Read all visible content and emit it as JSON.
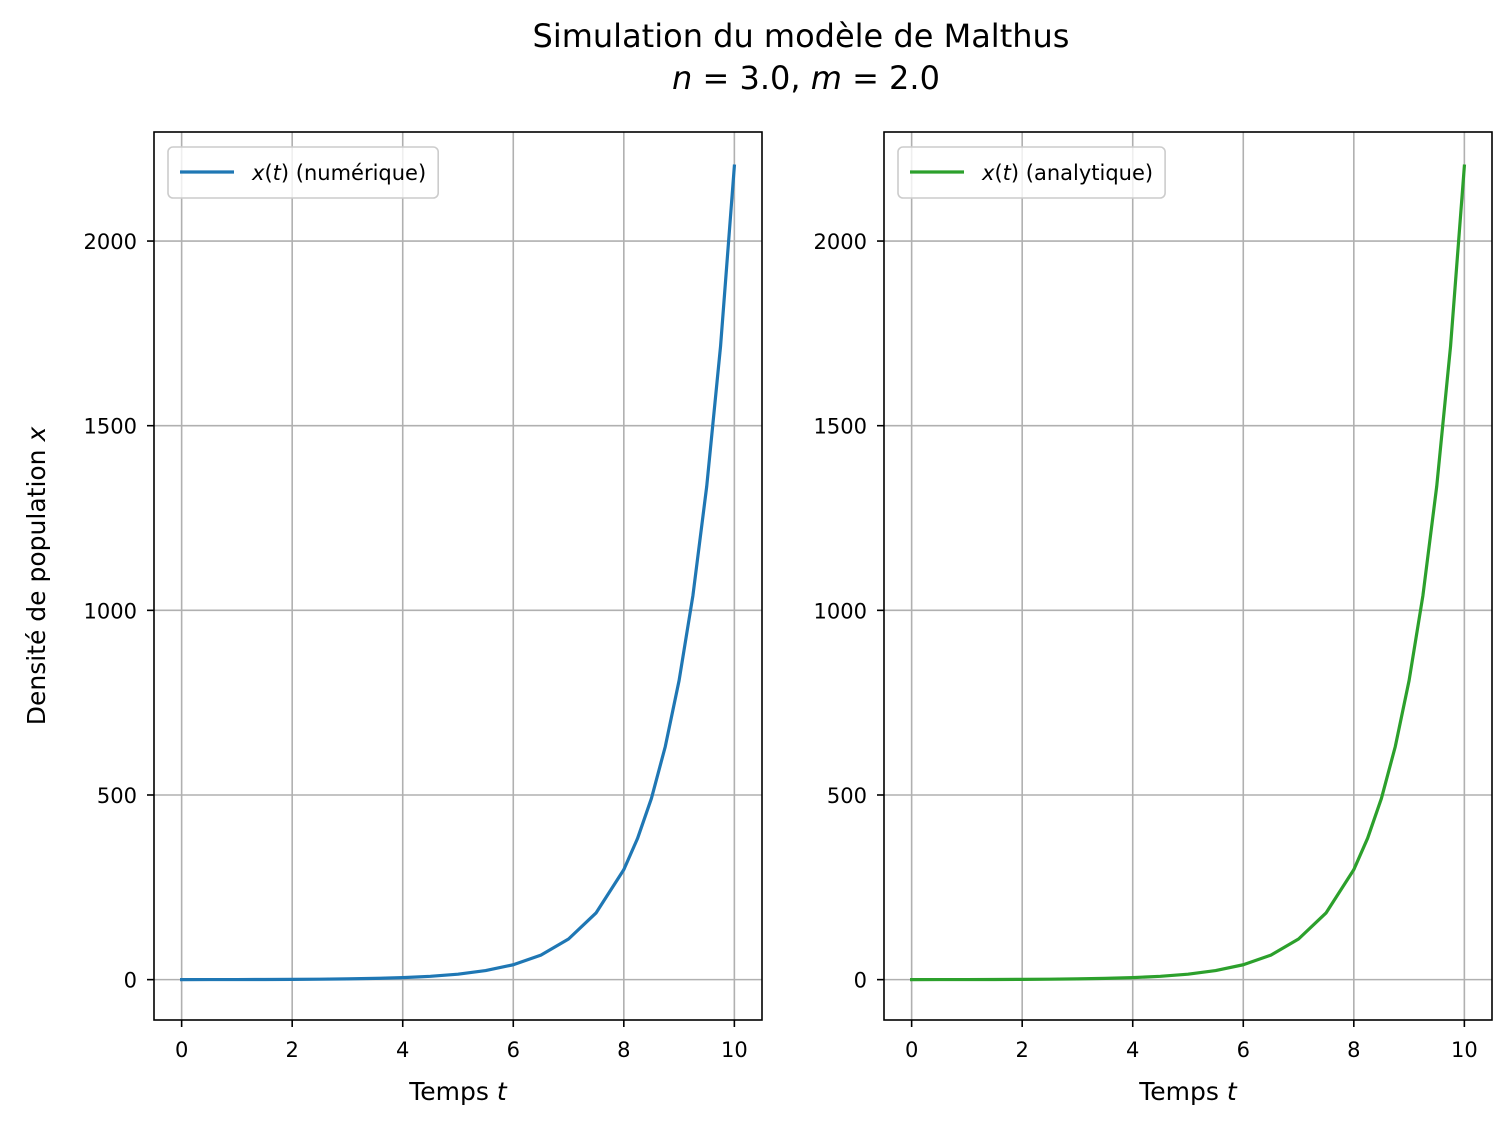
{
  "figure": {
    "title": "Simulation du modèle de Malthus",
    "subtitle": {
      "n_symbol": "n",
      "n_eq": " = 3.0, ",
      "m_symbol": "m",
      "m_eq": " = 2.0"
    }
  },
  "colors": {
    "series_numeric": "#1f77b4",
    "series_analytic": "#2ca02c",
    "grid": "#b0b0b0"
  },
  "chart_data": [
    {
      "type": "line",
      "title": "",
      "xlabel": {
        "text": "Temps ",
        "var": "t"
      },
      "ylabel": {
        "text": "Densité de population ",
        "var": "x"
      },
      "xlim": [
        -0.5,
        10.5
      ],
      "ylim": [
        -109.3,
        2295.3
      ],
      "xticks": [
        0,
        2,
        4,
        6,
        8,
        10
      ],
      "xtick_labels": [
        "0",
        "2",
        "4",
        "6",
        "8",
        "10"
      ],
      "yticks": [
        0,
        500,
        1000,
        1500,
        2000
      ],
      "ytick_labels": [
        "0",
        "500",
        "1000",
        "1500",
        "2000"
      ],
      "grid": true,
      "legend_placement": "upper-left",
      "series": [
        {
          "name": "x(t) (numérique)",
          "legend": {
            "var": "x",
            "open": "(",
            "arg": "t",
            "close": ")",
            "rest": " (numérique)"
          },
          "color": "#1f77b4",
          "x": [
            0,
            0.5,
            1,
            1.5,
            2,
            2.5,
            3,
            3.5,
            4,
            4.5,
            5,
            5.5,
            6,
            6.5,
            7,
            7.5,
            8,
            8.25,
            8.5,
            8.75,
            9,
            9.25,
            9.5,
            9.75,
            10
          ],
          "y": [
            0.1,
            0.16,
            0.27,
            0.45,
            0.74,
            1.22,
            2.01,
            3.31,
            5.46,
            9.0,
            14.8,
            24.5,
            40.3,
            66.5,
            110,
            181,
            298,
            383,
            491,
            631,
            810,
            1040,
            1336,
            1715,
            2203
          ]
        }
      ]
    },
    {
      "type": "line",
      "title": "",
      "xlabel": {
        "text": "Temps ",
        "var": "t"
      },
      "ylabel": null,
      "xlim": [
        -0.5,
        10.5
      ],
      "ylim": [
        -109.3,
        2295.3
      ],
      "xticks": [
        0,
        2,
        4,
        6,
        8,
        10
      ],
      "xtick_labels": [
        "0",
        "2",
        "4",
        "6",
        "8",
        "10"
      ],
      "yticks": [
        0,
        500,
        1000,
        1500,
        2000
      ],
      "ytick_labels": [
        "0",
        "500",
        "1000",
        "1500",
        "2000"
      ],
      "grid": true,
      "legend_placement": "upper-left",
      "series": [
        {
          "name": "x(t) (analytique)",
          "legend": {
            "var": "x",
            "open": "(",
            "arg": "t",
            "close": ")",
            "rest": " (analytique)"
          },
          "color": "#2ca02c",
          "x": [
            0,
            0.5,
            1,
            1.5,
            2,
            2.5,
            3,
            3.5,
            4,
            4.5,
            5,
            5.5,
            6,
            6.5,
            7,
            7.5,
            8,
            8.25,
            8.5,
            8.75,
            9,
            9.25,
            9.5,
            9.75,
            10
          ],
          "y": [
            0.1,
            0.16,
            0.27,
            0.45,
            0.74,
            1.22,
            2.01,
            3.31,
            5.46,
            9.0,
            14.8,
            24.5,
            40.3,
            66.5,
            110,
            181,
            298,
            383,
            491,
            631,
            810,
            1040,
            1336,
            1715,
            2203
          ]
        }
      ]
    }
  ]
}
